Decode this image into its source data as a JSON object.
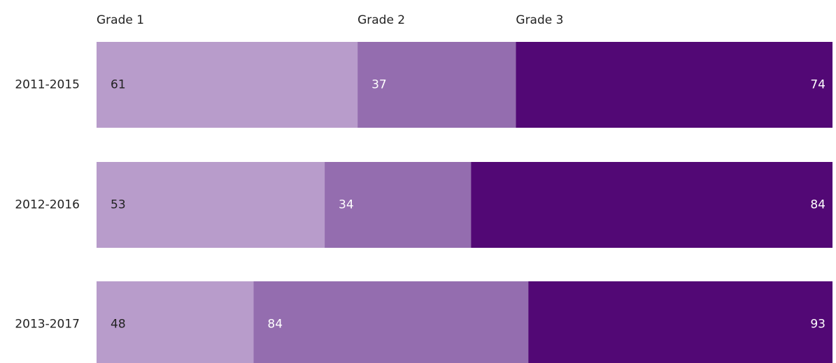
{
  "chart_data": {
    "type": "bar",
    "orientation": "horizontal",
    "stacked": true,
    "categories": [
      "2011-2015",
      "2012-2016",
      "2013-2017"
    ],
    "series": [
      {
        "name": "Grade 1",
        "color": "#b89ccb",
        "values": [
          61,
          53,
          48
        ]
      },
      {
        "name": "Grade 2",
        "color": "#946daf",
        "values": [
          37,
          34,
          84
        ]
      },
      {
        "name": "Grade 3",
        "color": "#520875",
        "values": [
          74,
          84,
          93
        ]
      }
    ]
  }
}
